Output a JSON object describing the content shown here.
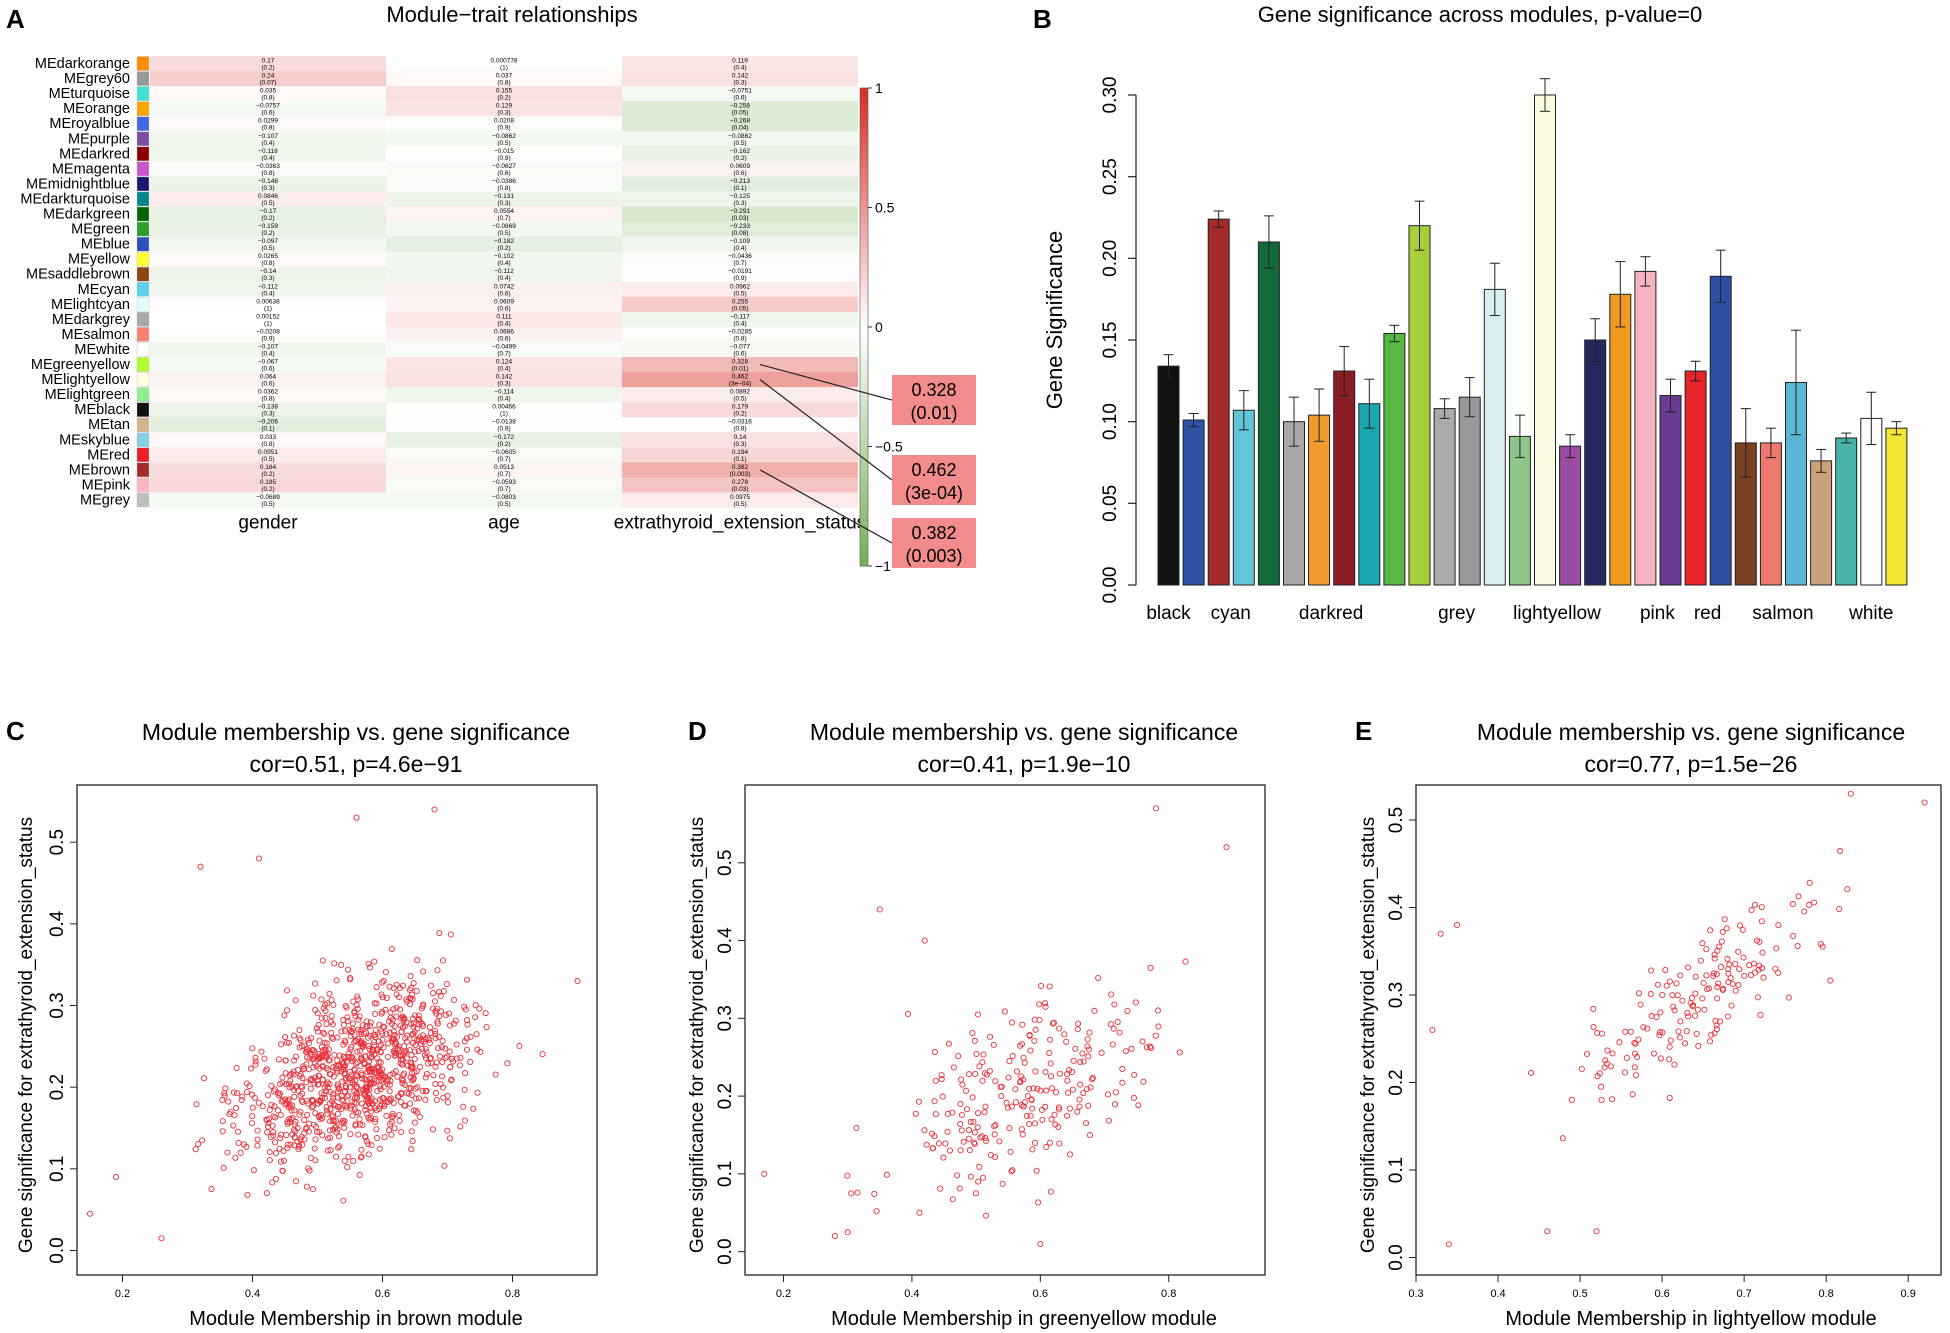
{
  "panels": {
    "a": "A",
    "b": "B",
    "c": "C",
    "d": "D",
    "e": "E"
  },
  "colors": {
    "neg": "#78b05a",
    "pos": "#d73027",
    "white": "#ffffff",
    "scatter": "#e8303a",
    "callout": "#f28b8b"
  },
  "chart_data": [
    {
      "id": "A",
      "type": "heatmap",
      "title": "Module−trait relationships",
      "columns": [
        "gender",
        "age",
        "extrathyroid_extension_status"
      ],
      "rows": [
        "MEdarkorange",
        "MEgrey60",
        "MEturquoise",
        "MEorange",
        "MEroyalblue",
        "MEpurple",
        "MEdarkred",
        "MEmagenta",
        "MEmidnightblue",
        "MEdarkturquoise",
        "MEdarkgreen",
        "MEgreen",
        "MEblue",
        "MEyellow",
        "MEsaddlebrown",
        "MEcyan",
        "MElightcyan",
        "MEdarkgrey",
        "MEsalmon",
        "MEwhite",
        "MEgreenyellow",
        "MElightyellow",
        "MElightgreen",
        "MEblack",
        "MEtan",
        "MEskyblue",
        "MEred",
        "MEbrown",
        "MEpink",
        "MEgrey"
      ],
      "row_colors": [
        "#ff8c00",
        "#999999",
        "#40e0d0",
        "#ffa500",
        "#4169e1",
        "#7b4ea3",
        "#8b0000",
        "#cc55cc",
        "#191970",
        "#00868b",
        "#006400",
        "#2ca02c",
        "#2b50b8",
        "#ffff33",
        "#8b4513",
        "#5fd0e8",
        "#e0ffff",
        "#a9a9a9",
        "#fa8072",
        "#ffffff",
        "#adff2f",
        "#ffffe0",
        "#90ee90",
        "#111111",
        "#d2b48c",
        "#87ceeb",
        "#ee1c25",
        "#a52a2a",
        "#ffb6c1",
        "#bebebe"
      ],
      "cor": [
        [
          0.17,
          0.000778,
          0.119
        ],
        [
          0.24,
          0.037,
          0.142
        ],
        [
          0.035,
          0.155,
          -0.0751
        ],
        [
          -0.0757,
          0.129,
          -0.258
        ],
        [
          0.0299,
          0.0208,
          -0.268
        ],
        [
          -0.107,
          -0.0862,
          -0.0862
        ],
        [
          -0.118,
          -0.015,
          -0.162
        ],
        [
          -0.0363,
          -0.0627,
          0.0609
        ],
        [
          -0.148,
          -0.0386,
          -0.213
        ],
        [
          0.0846,
          -0.131,
          -0.125
        ],
        [
          -0.17,
          0.0554,
          -0.291
        ],
        [
          -0.159,
          -0.0869,
          -0.233
        ],
        [
          -0.097,
          -0.182,
          -0.109
        ],
        [
          0.0265,
          -0.102,
          -0.0436
        ],
        [
          -0.14,
          -0.112,
          -0.0191
        ],
        [
          -0.112,
          0.0742,
          0.0962
        ],
        [
          0.00638,
          0.0609,
          0.255
        ],
        [
          0.00152,
          0.111,
          -0.117
        ],
        [
          -0.0208,
          0.0686,
          -0.0285
        ],
        [
          -0.107,
          -0.0499,
          -0.077
        ],
        [
          -0.067,
          0.124,
          0.328
        ],
        [
          0.064,
          0.142,
          0.462
        ],
        [
          0.0362,
          -0.114,
          0.0892
        ],
        [
          -0.138,
          0.00466,
          0.179
        ],
        [
          -0.206,
          -0.0138,
          -0.0316
        ],
        [
          0.033,
          -0.172,
          0.14
        ],
        [
          0.0951,
          -0.0605,
          0.194
        ],
        [
          0.164,
          0.0513,
          0.382
        ],
        [
          0.185,
          -0.0593,
          0.278
        ],
        [
          -0.0689,
          -0.0803,
          0.0975
        ]
      ],
      "pval": [
        [
          "(0.2)",
          "(1)",
          "(0.4)"
        ],
        [
          "(0.07)",
          "(0.8)",
          "(0.3)"
        ],
        [
          "(0.8)",
          "(0.2)",
          "(0.6)"
        ],
        [
          "(0.6)",
          "(0.3)",
          "(0.05)"
        ],
        [
          "(0.8)",
          "(0.9)",
          "(0.04)"
        ],
        [
          "(0.4)",
          "(0.5)",
          "(0.5)"
        ],
        [
          "(0.4)",
          "(0.9)",
          "(0.2)"
        ],
        [
          "(0.8)",
          "(0.6)",
          "(0.6)"
        ],
        [
          "(0.3)",
          "(0.8)",
          "(0.1)"
        ],
        [
          "(0.5)",
          "(0.3)",
          "(0.3)"
        ],
        [
          "(0.2)",
          "(0.7)",
          "(0.03)"
        ],
        [
          "(0.2)",
          "(0.5)",
          "(0.08)"
        ],
        [
          "(0.5)",
          "(0.2)",
          "(0.4)"
        ],
        [
          "(0.8)",
          "(0.4)",
          "(0.7)"
        ],
        [
          "(0.3)",
          "(0.4)",
          "(0.9)"
        ],
        [
          "(0.4)",
          "(0.6)",
          "(0.5)"
        ],
        [
          "(1)",
          "(0.6)",
          "(0.05)"
        ],
        [
          "(1)",
          "(0.4)",
          "(0.4)"
        ],
        [
          "(0.9)",
          "(0.6)",
          "(0.8)"
        ],
        [
          "(0.4)",
          "(0.7)",
          "(0.6)"
        ],
        [
          "(0.6)",
          "(0.4)",
          "(0.01)"
        ],
        [
          "(0.6)",
          "(0.3)",
          "(3e−04)"
        ],
        [
          "(0.8)",
          "(0.4)",
          "(0.5)"
        ],
        [
          "(0.3)",
          "(1)",
          "(0.2)"
        ],
        [
          "(0.1)",
          "(0.9)",
          "(0.8)"
        ],
        [
          "(0.8)",
          "(0.2)",
          "(0.3)"
        ],
        [
          "(0.5)",
          "(0.7)",
          "(0.1)"
        ],
        [
          "(0.2)",
          "(0.7)",
          "(0.003)"
        ],
        [
          "(0.2)",
          "(0.7)",
          "(0.03)"
        ],
        [
          "(0.5)",
          "(0.5)",
          "(0.5)"
        ]
      ],
      "legend_ticks": [
        "1",
        "0.5",
        "0",
        "−0.5",
        "−1"
      ],
      "callouts": [
        {
          "row": 20,
          "value": "0.328",
          "p": "(0.01)"
        },
        {
          "row": 21,
          "value": "0.462",
          "p": "(3e-04)"
        },
        {
          "row": 27,
          "value": "0.382",
          "p": "(0.003)"
        }
      ]
    },
    {
      "id": "B",
      "type": "bar",
      "title": "Gene significance across modules, p-value=0",
      "ylabel": "Gene Significance",
      "ylim": [
        0,
        0.3
      ],
      "yticks": [
        "0.00",
        "0.05",
        "0.10",
        "0.15",
        "0.20",
        "0.25",
        "0.30"
      ],
      "xlabels": [
        "black",
        "cyan",
        "darkred",
        "grey",
        "lightyellow",
        "pink",
        "red",
        "salmon",
        "white"
      ],
      "bars": [
        {
          "c": "#111111",
          "v": 0.134,
          "e": 0.007
        },
        {
          "c": "#2f52a6",
          "v": 0.101,
          "e": 0.004
        },
        {
          "c": "#a52a2a",
          "v": 0.224,
          "e": 0.005
        },
        {
          "c": "#62c5d8",
          "v": 0.107,
          "e": 0.012
        },
        {
          "c": "#136b3a",
          "v": 0.21,
          "e": 0.016
        },
        {
          "c": "#a9a9a9",
          "v": 0.1,
          "e": 0.015
        },
        {
          "c": "#f09b2c",
          "v": 0.104,
          "e": 0.016
        },
        {
          "c": "#8b1d24",
          "v": 0.131,
          "e": 0.015
        },
        {
          "c": "#1aa8b0",
          "v": 0.111,
          "e": 0.015
        },
        {
          "c": "#56b842",
          "v": 0.154,
          "e": 0.005
        },
        {
          "c": "#a7cf3a",
          "v": 0.22,
          "e": 0.015
        },
        {
          "c": "#aaaaaa",
          "v": 0.108,
          "e": 0.006
        },
        {
          "c": "#999999",
          "v": 0.115,
          "e": 0.012
        },
        {
          "c": "#d9eef2",
          "v": 0.181,
          "e": 0.016
        },
        {
          "c": "#8fc58b",
          "v": 0.091,
          "e": 0.013
        },
        {
          "c": "#fbfbe2",
          "v": 0.3,
          "e": 0.01
        },
        {
          "c": "#9b4ba1",
          "v": 0.085,
          "e": 0.007
        },
        {
          "c": "#23285e",
          "v": 0.15,
          "e": 0.013
        },
        {
          "c": "#f09a22",
          "v": 0.178,
          "e": 0.02
        },
        {
          "c": "#f4b5c1",
          "v": 0.192,
          "e": 0.009
        },
        {
          "c": "#6a3b93",
          "v": 0.116,
          "e": 0.01
        },
        {
          "c": "#e8232a",
          "v": 0.131,
          "e": 0.006
        },
        {
          "c": "#2e50a2",
          "v": 0.189,
          "e": 0.016
        },
        {
          "c": "#7a4223",
          "v": 0.087,
          "e": 0.021
        },
        {
          "c": "#ee7a6e",
          "v": 0.087,
          "e": 0.009
        },
        {
          "c": "#5bb6d5",
          "v": 0.124,
          "e": 0.032
        },
        {
          "c": "#c9a27a",
          "v": 0.076,
          "e": 0.007
        },
        {
          "c": "#48b4a8",
          "v": 0.09,
          "e": 0.003
        },
        {
          "c": "#ffffff",
          "v": 0.102,
          "e": 0.016
        },
        {
          "c": "#f3e534",
          "v": 0.096,
          "e": 0.004
        }
      ]
    },
    {
      "id": "C",
      "type": "scatter",
      "title": "Module membership vs. gene significance",
      "subtitle": "cor=0.51, p=4.6e−91",
      "xlabel": "Module Membership in brown module",
      "ylabel": "Gene significance for extrathyroid_extension_status",
      "xlim": [
        0.13,
        0.93
      ],
      "ylim": [
        -0.03,
        0.57
      ],
      "xticks": [
        "0.2",
        "0.4",
        "0.6",
        "0.8"
      ],
      "xtickvals": [
        0.2,
        0.4,
        0.6,
        0.8
      ],
      "yticks": [
        "0.0",
        "0.1",
        "0.2",
        "0.3",
        "0.4",
        "0.5"
      ],
      "ytickvals": [
        0,
        0.1,
        0.2,
        0.3,
        0.4,
        0.5
      ],
      "n": 1000,
      "cor": 0.51,
      "trend": {
        "slope": 0.32,
        "intercept": 0.04,
        "noise": 0.085
      },
      "points": [
        [
          0.15,
          0.045
        ],
        [
          0.19,
          0.09
        ],
        [
          0.56,
          0.53
        ],
        [
          0.68,
          0.54
        ],
        [
          0.41,
          0.48
        ],
        [
          0.32,
          0.47
        ],
        [
          0.26,
          0.015
        ],
        [
          0.9,
          0.33
        ]
      ]
    },
    {
      "id": "D",
      "type": "scatter",
      "title": "Module membership vs. gene significance",
      "subtitle": "cor=0.41, p=1.9e−10",
      "xlabel": "Module Membership in greenyellow module",
      "ylabel": "Gene significance for extrathyroid_extension_status",
      "xlim": [
        0.14,
        0.95
      ],
      "ylim": [
        -0.03,
        0.6
      ],
      "xticks": [
        "0.2",
        "0.4",
        "0.6",
        "0.8"
      ],
      "xtickvals": [
        0.2,
        0.4,
        0.6,
        0.8
      ],
      "yticks": [
        "0.0",
        "0.1",
        "0.2",
        "0.3",
        "0.4",
        "0.5"
      ],
      "ytickvals": [
        0,
        0.1,
        0.2,
        0.3,
        0.4,
        0.5
      ],
      "n": 250,
      "cor": 0.41,
      "trend": {
        "slope": 0.33,
        "intercept": 0.02,
        "noise": 0.1
      },
      "points": [
        [
          0.17,
          0.1
        ],
        [
          0.78,
          0.57
        ],
        [
          0.89,
          0.52
        ],
        [
          0.35,
          0.44
        ],
        [
          0.42,
          0.4
        ],
        [
          0.28,
          0.02
        ],
        [
          0.3,
          0.025
        ],
        [
          0.6,
          0.01
        ]
      ]
    },
    {
      "id": "E",
      "type": "scatter",
      "title": "Module membership vs. gene significance",
      "subtitle": "cor=0.77, p=1.5e−26",
      "xlabel": "Module Membership in lightyellow module",
      "ylabel": "Gene significance for extrathyroid_extension_status",
      "xlim": [
        0.3,
        0.94
      ],
      "ylim": [
        -0.02,
        0.54
      ],
      "xticks": [
        "0.3",
        "0.4",
        "0.5",
        "0.6",
        "0.7",
        "0.8",
        "0.9"
      ],
      "xtickvals": [
        0.3,
        0.4,
        0.5,
        0.6,
        0.7,
        0.8,
        0.9
      ],
      "yticks": [
        "0.0",
        "0.1",
        "0.2",
        "0.3",
        "0.4",
        "0.5"
      ],
      "ytickvals": [
        0,
        0.1,
        0.2,
        0.3,
        0.4,
        0.5
      ],
      "n": 170,
      "cor": 0.77,
      "trend": {
        "slope": 0.62,
        "intercept": -0.1,
        "noise": 0.06
      },
      "points": [
        [
          0.32,
          0.26
        ],
        [
          0.33,
          0.37
        ],
        [
          0.35,
          0.38
        ],
        [
          0.34,
          0.015
        ],
        [
          0.83,
          0.53
        ],
        [
          0.92,
          0.52
        ],
        [
          0.52,
          0.03
        ],
        [
          0.46,
          0.03
        ]
      ]
    }
  ]
}
